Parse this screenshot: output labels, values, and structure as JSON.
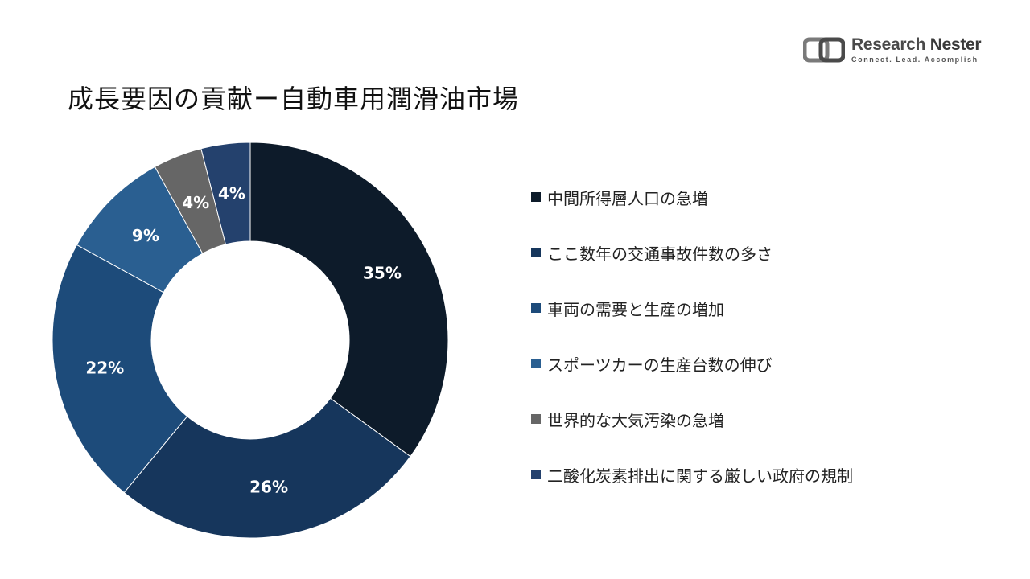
{
  "header": {
    "title": "成長要因の貢献ー自動車用潤滑油市場"
  },
  "logo": {
    "name_part1": "Research",
    "name_part2": "Nester",
    "tagline": "Connect. Lead. Accomplish"
  },
  "chart_data": {
    "type": "pie",
    "variant": "donut",
    "title": "",
    "categories": [
      "中間所得層人口の急増",
      "ここ数年の交通事故件数の多さ",
      "車両の需要と生産の増加",
      "スポーツカーの生産台数の伸び",
      "世界的な大気汚染の急増",
      "二酸化炭素排出に関する厳しい政府の規制"
    ],
    "values": [
      35,
      26,
      22,
      9,
      4,
      4
    ],
    "labels": [
      "35%",
      "26%",
      "22%",
      "9%",
      "4%",
      "4%"
    ],
    "colors": [
      "#0d1b2a",
      "#16365c",
      "#1d4b7a",
      "#2a5f91",
      "#666666",
      "#24416d"
    ],
    "legend_position": "right"
  }
}
